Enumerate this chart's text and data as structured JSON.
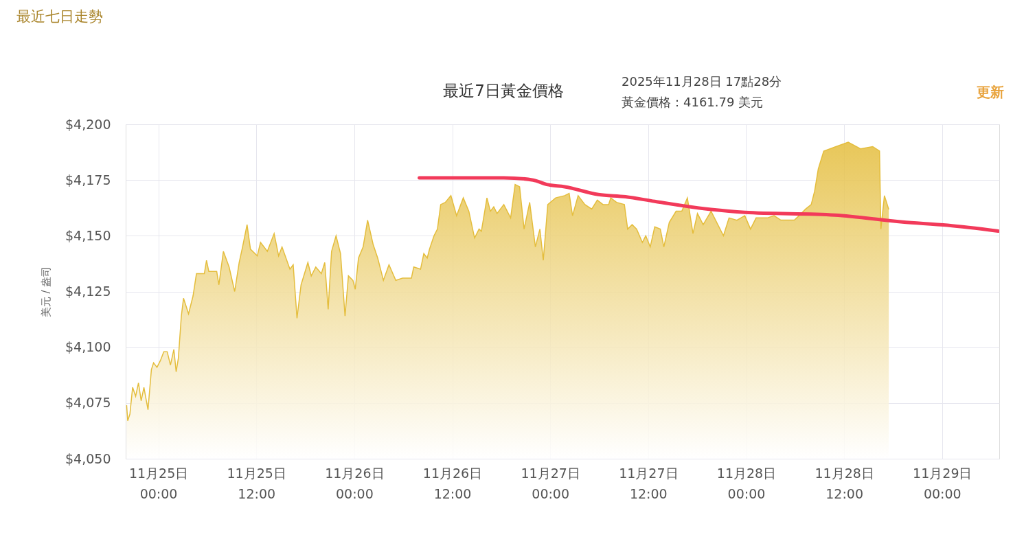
{
  "chart_data": {
    "type": "area",
    "title": "最近7日黃金價格",
    "ylabel": "美元 / 盎司",
    "xlim": [
      "2025-11-24T20:00",
      "2025-11-29T07:00"
    ],
    "xticks": [
      {
        "value": "2025-11-25T00:00",
        "label": "11月25日 00:00"
      },
      {
        "value": "2025-11-25T12:00",
        "label": "11月25日 12:00"
      },
      {
        "value": "2025-11-26T00:00",
        "label": "11月26日 00:00"
      },
      {
        "value": "2025-11-26T12:00",
        "label": "11月26日 12:00"
      },
      {
        "value": "2025-11-27T00:00",
        "label": "11月27日 00:00"
      },
      {
        "value": "2025-11-27T12:00",
        "label": "11月27日 12:00"
      },
      {
        "value": "2025-11-28T00:00",
        "label": "11月28日 00:00"
      },
      {
        "value": "2025-11-28T12:00",
        "label": "11月28日 12:00"
      },
      {
        "value": "2025-11-29T00:00",
        "label": "11月29日 00:00"
      }
    ],
    "ylim": [
      4050,
      4200
    ],
    "yticks": [
      {
        "value": 4050,
        "label": "$4,050"
      },
      {
        "value": 4075,
        "label": "$4,075"
      },
      {
        "value": 4100,
        "label": "$4,100"
      },
      {
        "value": 4125,
        "label": "$4,125"
      },
      {
        "value": 4150,
        "label": "$4,150"
      },
      {
        "value": 4175,
        "label": "$4,175"
      },
      {
        "value": 4200,
        "label": "$4,200"
      }
    ],
    "grid": true,
    "annotations": [
      "最近七日走勢",
      "更新",
      "2025年11月28日 17點28分",
      "黃金價格：4161.79 美元"
    ],
    "series": [
      {
        "color": "#e4bd3c",
        "x": [
          "2025-11-24T20:07",
          "2025-11-24T20:15",
          "2025-11-24T20:31",
          "2025-11-24T20:51",
          "2025-11-24T21:13",
          "2025-11-24T21:34",
          "2025-11-24T21:54",
          "2025-11-24T22:14",
          "2025-11-24T22:44",
          "2025-11-24T23:09",
          "2025-11-24T23:25",
          "2025-11-24T23:50",
          "2025-11-25T00:15",
          "2025-11-25T00:40",
          "2025-11-25T01:05",
          "2025-11-25T01:29",
          "2025-11-25T01:54",
          "2025-11-25T02:11",
          "2025-11-25T02:27",
          "2025-11-25T02:49",
          "2025-11-25T03:05",
          "2025-11-25T03:42",
          "2025-11-25T04:15",
          "2025-11-25T04:40",
          "2025-11-25T05:38",
          "2025-11-25T05:54",
          "2025-11-25T06:11",
          "2025-11-25T07:09",
          "2025-11-25T07:25",
          "2025-11-25T07:58",
          "2025-11-25T08:40",
          "2025-11-25T09:21",
          "2025-11-25T09:54",
          "2025-11-25T10:19",
          "2025-11-25T10:52",
          "2025-11-25T11:17",
          "2025-11-25T12:07",
          "2025-11-25T12:31",
          "2025-11-25T13:21",
          "2025-11-25T14:11",
          "2025-11-25T14:44",
          "2025-11-25T15:09",
          "2025-11-25T16:07",
          "2025-11-25T16:31",
          "2025-11-25T16:59",
          "2025-11-25T17:29",
          "2025-11-25T18:19",
          "2025-11-25T18:44",
          "2025-11-25T19:17",
          "2025-11-25T19:58",
          "2025-11-25T20:23",
          "2025-11-25T20:48",
          "2025-11-25T21:13",
          "2025-11-25T21:46",
          "2025-11-25T22:19",
          "2025-11-25T22:52",
          "2025-11-25T23:17",
          "2025-11-25T23:50",
          "2025-11-26T00:07",
          "2025-11-26T00:31",
          "2025-11-26T01:05",
          "2025-11-26T01:38",
          "2025-11-26T02:19",
          "2025-11-26T02:52",
          "2025-11-26T03:34",
          "2025-11-26T04:15",
          "2025-11-26T05:05",
          "2025-11-26T05:55",
          "2025-11-26T07:00",
          "2025-11-26T07:17",
          "2025-11-26T08:07",
          "2025-11-26T08:31",
          "2025-11-26T08:56",
          "2025-11-26T09:13",
          "2025-11-26T09:46",
          "2025-11-26T10:11",
          "2025-11-26T10:35",
          "2025-11-26T11:09",
          "2025-11-26T11:50",
          "2025-11-26T12:32",
          "2025-11-26T13:21",
          "2025-11-26T14:02",
          "2025-11-26T14:44",
          "2025-11-26T15:17",
          "2025-11-26T15:34",
          "2025-11-26T16:15",
          "2025-11-26T16:40",
          "2025-11-26T17:05",
          "2025-11-26T17:29",
          "2025-11-26T18:19",
          "2025-11-26T19:09",
          "2025-11-26T19:42",
          "2025-11-26T20:15",
          "2025-11-26T20:48",
          "2025-11-26T21:29",
          "2025-11-26T22:11",
          "2025-11-26T22:44",
          "2025-11-26T23:09",
          "2025-11-26T23:42",
          "2025-11-27T00:40",
          "2025-11-27T01:46",
          "2025-11-27T02:19",
          "2025-11-27T02:44",
          "2025-11-27T03:25",
          "2025-11-27T04:15",
          "2025-11-27T05:05",
          "2025-11-27T05:46",
          "2025-11-27T06:28",
          "2025-11-27T07:09",
          "2025-11-27T07:25",
          "2025-11-27T08:07",
          "2025-11-27T09:05",
          "2025-11-27T09:29",
          "2025-11-27T10:02",
          "2025-11-27T10:35",
          "2025-11-27T11:17",
          "2025-11-27T11:42",
          "2025-11-27T12:15",
          "2025-11-27T12:48",
          "2025-11-27T13:29",
          "2025-11-27T13:55",
          "2025-11-27T14:35",
          "2025-11-27T15:25",
          "2025-11-27T16:07",
          "2025-11-27T16:48",
          "2025-11-27T17:29",
          "2025-11-27T18:02",
          "2025-11-27T18:44",
          "2025-11-27T19:42",
          "2025-11-27T21:13",
          "2025-11-27T21:54",
          "2025-11-27T22:52",
          "2025-11-27T23:50",
          "2025-11-28T00:32",
          "2025-11-28T01:13",
          "2025-11-28T02:35",
          "2025-11-28T03:25",
          "2025-11-28T04:15",
          "2025-11-28T05:54",
          "2025-11-28T06:28",
          "2025-11-28T07:17",
          "2025-11-28T07:58",
          "2025-11-28T08:23",
          "2025-11-28T08:50",
          "2025-11-28T09:30",
          "2025-11-28T11:00",
          "2025-11-28T12:30",
          "2025-11-28T14:00",
          "2025-11-28T15:30",
          "2025-11-28T16:20",
          "2025-11-28T16:30",
          "2025-11-28T16:56",
          "2025-11-28T17:28"
        ],
        "values": [
          4074,
          4067,
          4070,
          4082,
          4078,
          4084,
          4076,
          4082,
          4072,
          4090,
          4093,
          4091,
          4094,
          4098,
          4098,
          4092,
          4099,
          4089,
          4095,
          4114,
          4122,
          4115,
          4123,
          4133,
          4133,
          4139,
          4134,
          4134,
          4128,
          4143,
          4136,
          4125,
          4138,
          4145,
          4155,
          4144,
          4141,
          4147,
          4143,
          4151,
          4141,
          4145,
          4135,
          4137,
          4113,
          4128,
          4138,
          4132,
          4136,
          4133,
          4138,
          4117,
          4143,
          4150,
          4142,
          4114,
          4132,
          4130,
          4126,
          4140,
          4145,
          4157,
          4146,
          4140,
          4130,
          4137,
          4130,
          4131,
          4131,
          4136,
          4135,
          4142,
          4140,
          4144,
          4150,
          4153,
          4164,
          4165,
          4168,
          4159,
          4167,
          4161,
          4149,
          4153,
          4152,
          4167,
          4161,
          4163,
          4160,
          4164,
          4158,
          4173,
          4172,
          4153,
          4165,
          4145,
          4153,
          4139,
          4164,
          4167,
          4168,
          4169,
          4159,
          4168,
          4164,
          4162,
          4166,
          4164,
          4164,
          4167,
          4165,
          4164,
          4153,
          4155,
          4153,
          4147,
          4150,
          4145,
          4154,
          4153,
          4145,
          4156,
          4161,
          4161,
          4167,
          4151,
          4160,
          4155,
          4161,
          4150,
          4158,
          4157,
          4159,
          4153,
          4158,
          4158,
          4159,
          4157,
          4157,
          4159,
          4162,
          4164,
          4170,
          4180,
          4188,
          4190,
          4192,
          4189,
          4190,
          4188,
          4153,
          4168,
          4161.79
        ]
      },
      {
        "type": "line",
        "color": "#f23a5a",
        "x": [
          "2025-11-26T07:58",
          "2025-11-26T18:19",
          "2025-11-26T21:54",
          "2025-11-26T23:34",
          "2025-11-27T01:46",
          "2025-11-27T05:54",
          "2025-11-27T09:13",
          "2025-11-27T12:48",
          "2025-11-27T19:42",
          "2025-11-27T23:50",
          "2025-11-28T10:52",
          "2025-11-28T19:09",
          "2025-11-29T00:40",
          "2025-11-29T06:52"
        ],
        "values": [
          4176,
          4176,
          4175,
          4173,
          4172,
          4168.5,
          4167.5,
          4165.4,
          4161.8,
          4160.5,
          4159.3,
          4156.2,
          4154.7,
          4152.1
        ]
      }
    ]
  }
}
